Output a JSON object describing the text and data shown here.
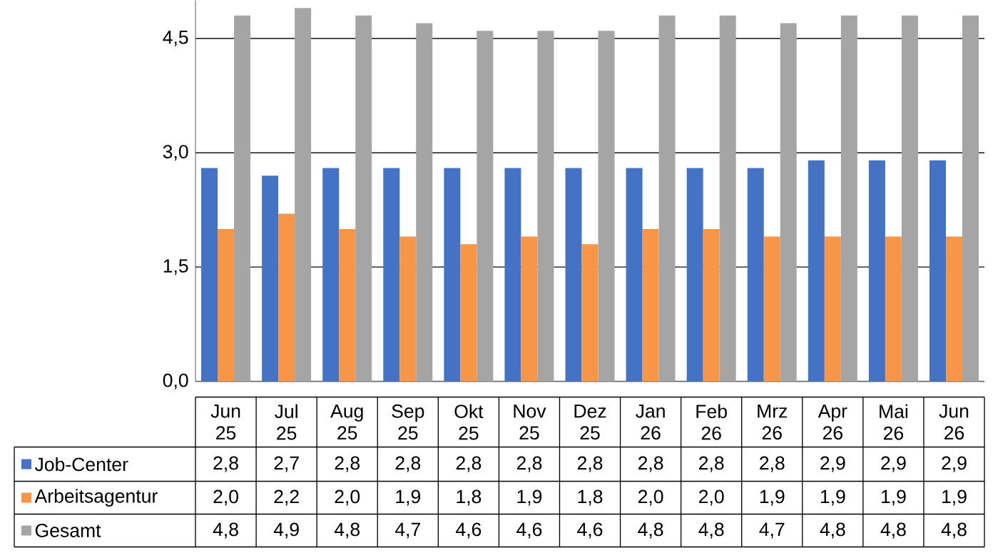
{
  "chart_data": {
    "type": "bar",
    "categories": [
      "Jun 25",
      "Jul 25",
      "Aug 25",
      "Sep 25",
      "Okt 25",
      "Nov 25",
      "Dez 25",
      "Jan 26",
      "Feb 26",
      "Mrz 26",
      "Apr 26",
      "Mai 26",
      "Jun 26"
    ],
    "series": [
      {
        "name": "Job-Center",
        "color": "#4472c4",
        "values": [
          2.8,
          2.7,
          2.8,
          2.8,
          2.8,
          2.8,
          2.8,
          2.8,
          2.8,
          2.8,
          2.9,
          2.9,
          2.9
        ],
        "value_labels": [
          "2,8",
          "2,7",
          "2,8",
          "2,8",
          "2,8",
          "2,8",
          "2,8",
          "2,8",
          "2,8",
          "2,8",
          "2,9",
          "2,9",
          "2,9"
        ]
      },
      {
        "name": "Arbeitsagentur",
        "color": "#f79646",
        "values": [
          2.0,
          2.2,
          2.0,
          1.9,
          1.8,
          1.9,
          1.8,
          2.0,
          2.0,
          1.9,
          1.9,
          1.9,
          1.9
        ],
        "value_labels": [
          "2,0",
          "2,2",
          "2,0",
          "1,9",
          "1,8",
          "1,9",
          "1,8",
          "2,0",
          "2,0",
          "1,9",
          "1,9",
          "1,9",
          "1,9"
        ]
      },
      {
        "name": "Gesamt",
        "color": "#a5a5a5",
        "values": [
          4.8,
          4.9,
          4.8,
          4.7,
          4.6,
          4.6,
          4.6,
          4.8,
          4.8,
          4.7,
          4.8,
          4.8,
          4.8
        ],
        "value_labels": [
          "4,8",
          "4,9",
          "4,8",
          "4,7",
          "4,6",
          "4,6",
          "4,6",
          "4,8",
          "4,8",
          "4,7",
          "4,8",
          "4,8",
          "4,8"
        ]
      }
    ],
    "ylim": [
      0,
      5
    ],
    "yticks": [
      {
        "value": 0,
        "label": "0,0"
      },
      {
        "value": 1.5,
        "label": "1,5"
      },
      {
        "value": 3,
        "label": "3,0"
      },
      {
        "value": 4.5,
        "label": "4,5"
      }
    ],
    "grid": "y",
    "legend": "bottom"
  }
}
